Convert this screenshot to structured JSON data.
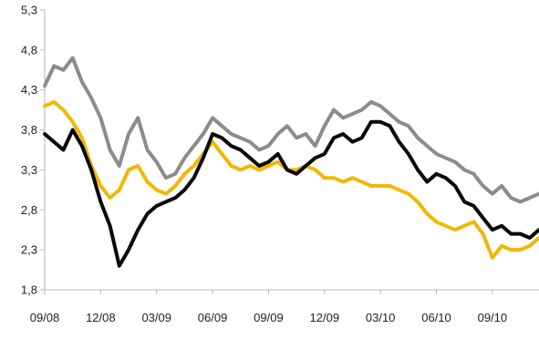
{
  "chart_data": {
    "type": "line",
    "title": "",
    "xlabel": "",
    "ylabel": "",
    "ylim": [
      1.8,
      5.3
    ],
    "y_ticks": [
      "1,8",
      "2,3",
      "2,8",
      "3,3",
      "3,8",
      "4,3",
      "4,8",
      "5,3"
    ],
    "y_tick_values": [
      1.8,
      2.3,
      2.8,
      3.3,
      3.8,
      4.3,
      4.8,
      5.3
    ],
    "x_ticks": [
      "09/08",
      "12/08",
      "03/09",
      "06/09",
      "09/09",
      "12/09",
      "03/10",
      "06/10",
      "09/10"
    ],
    "x_tick_values": [
      0,
      3,
      6,
      9,
      12,
      15,
      18,
      21,
      24
    ],
    "xlim": [
      0,
      26.5
    ],
    "grid": false,
    "legend": "none",
    "series": [
      {
        "color": "#8c8c8c",
        "x": [
          0,
          0.5,
          1,
          1.5,
          2,
          2.5,
          3,
          3.5,
          4,
          4.5,
          5,
          5.5,
          6,
          6.5,
          7,
          7.5,
          8,
          8.5,
          9,
          9.5,
          10,
          10.5,
          11,
          11.5,
          12,
          12.5,
          13,
          13.5,
          14,
          14.5,
          15,
          15.5,
          16,
          16.5,
          17,
          17.5,
          18,
          18.5,
          19,
          19.5,
          20,
          20.5,
          21,
          21.5,
          22,
          22.5,
          23,
          23.5,
          24,
          24.5,
          25,
          25.5,
          26,
          26.5
        ],
        "values": [
          4.35,
          4.6,
          4.55,
          4.7,
          4.4,
          4.2,
          3.95,
          3.55,
          3.35,
          3.75,
          3.95,
          3.55,
          3.4,
          3.2,
          3.25,
          3.45,
          3.6,
          3.75,
          3.95,
          3.85,
          3.75,
          3.7,
          3.65,
          3.55,
          3.6,
          3.75,
          3.85,
          3.7,
          3.75,
          3.6,
          3.85,
          4.05,
          3.95,
          4.0,
          4.05,
          4.15,
          4.1,
          4.0,
          3.9,
          3.85,
          3.7,
          3.6,
          3.5,
          3.45,
          3.4,
          3.3,
          3.25,
          3.1,
          3.0,
          3.1,
          2.95,
          2.9,
          2.95,
          3.0
        ]
      },
      {
        "color": "#f2b705",
        "x": [
          0,
          0.5,
          1,
          1.5,
          2,
          2.5,
          3,
          3.5,
          4,
          4.5,
          5,
          5.5,
          6,
          6.5,
          7,
          7.5,
          8,
          8.5,
          9,
          9.5,
          10,
          10.5,
          11,
          11.5,
          12,
          12.5,
          13,
          13.5,
          14,
          14.5,
          15,
          15.5,
          16,
          16.5,
          17,
          17.5,
          18,
          18.5,
          19,
          19.5,
          20,
          20.5,
          21,
          21.5,
          22,
          22.5,
          23,
          23.5,
          24,
          24.5,
          25,
          25.5,
          26,
          26.5
        ],
        "values": [
          4.1,
          4.15,
          4.05,
          3.9,
          3.7,
          3.35,
          3.1,
          2.95,
          3.05,
          3.3,
          3.35,
          3.15,
          3.05,
          3.0,
          3.1,
          3.25,
          3.35,
          3.5,
          3.65,
          3.5,
          3.35,
          3.3,
          3.35,
          3.3,
          3.35,
          3.4,
          3.3,
          3.3,
          3.35,
          3.3,
          3.2,
          3.2,
          3.15,
          3.2,
          3.15,
          3.1,
          3.1,
          3.1,
          3.05,
          3.0,
          2.9,
          2.75,
          2.65,
          2.6,
          2.55,
          2.6,
          2.65,
          2.5,
          2.2,
          2.35,
          2.3,
          2.3,
          2.35,
          2.45
        ]
      },
      {
        "color": "#0a0a0a",
        "x": [
          0,
          0.5,
          1,
          1.5,
          2,
          2.5,
          3,
          3.5,
          4,
          4.5,
          5,
          5.5,
          6,
          6.5,
          7,
          7.5,
          8,
          8.5,
          9,
          9.5,
          10,
          10.5,
          11,
          11.5,
          12,
          12.5,
          13,
          13.5,
          14,
          14.5,
          15,
          15.5,
          16,
          16.5,
          17,
          17.5,
          18,
          18.5,
          19,
          19.5,
          20,
          20.5,
          21,
          21.5,
          22,
          22.5,
          23,
          23.5,
          24,
          24.5,
          25,
          25.5,
          26,
          26.5
        ],
        "values": [
          3.75,
          3.65,
          3.55,
          3.8,
          3.6,
          3.3,
          2.9,
          2.6,
          2.1,
          2.3,
          2.55,
          2.75,
          2.85,
          2.9,
          2.95,
          3.05,
          3.2,
          3.45,
          3.75,
          3.7,
          3.6,
          3.55,
          3.45,
          3.35,
          3.4,
          3.5,
          3.3,
          3.25,
          3.35,
          3.45,
          3.5,
          3.7,
          3.75,
          3.65,
          3.7,
          3.9,
          3.9,
          3.85,
          3.65,
          3.5,
          3.3,
          3.15,
          3.25,
          3.2,
          3.1,
          2.9,
          2.85,
          2.7,
          2.55,
          2.6,
          2.5,
          2.5,
          2.45,
          2.55
        ]
      }
    ]
  }
}
